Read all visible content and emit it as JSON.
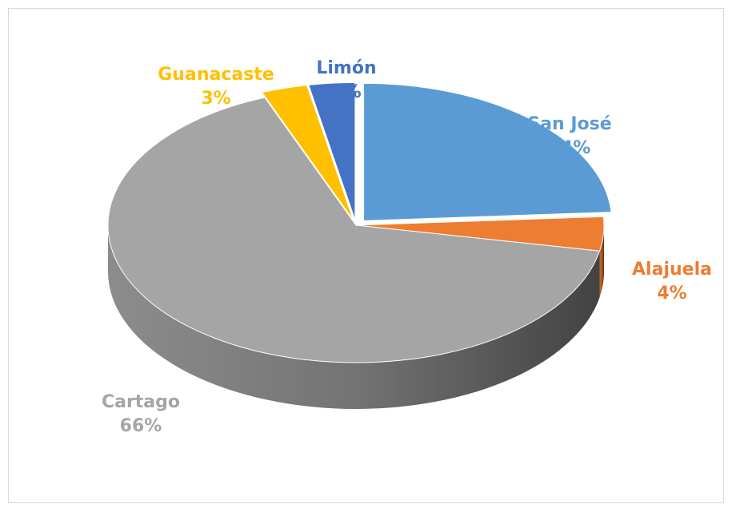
{
  "chart_data": {
    "type": "pie",
    "categories": [
      "San José",
      "Alajuela",
      "Cartago",
      "Guanacaste",
      "Limón"
    ],
    "values": [
      24,
      4,
      66,
      3,
      3
    ],
    "value_labels": [
      "24%",
      "4%",
      "66%",
      "3%",
      "3%"
    ],
    "colors": [
      "#5b9bd5",
      "#ed7d31",
      "#a5a5a5",
      "#ffc000",
      "#4472c4"
    ],
    "legend": false
  }
}
